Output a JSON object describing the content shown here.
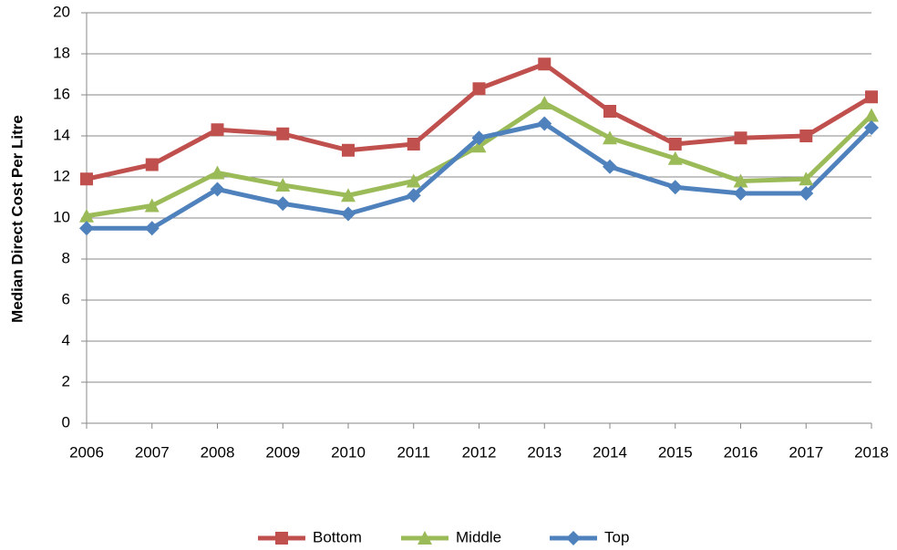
{
  "chart_data": {
    "type": "line",
    "y_label": "Median Direct Cost Per Litre",
    "categories": [
      "2006",
      "2007",
      "2008",
      "2009",
      "2010",
      "2011",
      "2012",
      "2013",
      "2014",
      "2015",
      "2016",
      "2017",
      "2018"
    ],
    "series": [
      {
        "name": "Bottom",
        "color": "#c0504d",
        "marker": "square",
        "values": [
          11.9,
          12.6,
          14.3,
          14.1,
          13.3,
          13.6,
          16.3,
          17.5,
          15.2,
          13.6,
          13.9,
          14.0,
          15.9
        ]
      },
      {
        "name": "Middle",
        "color": "#9bbb59",
        "marker": "triangle",
        "values": [
          10.1,
          10.6,
          12.2,
          11.6,
          11.1,
          11.8,
          13.5,
          15.6,
          13.9,
          12.9,
          11.8,
          11.9,
          15.0
        ]
      },
      {
        "name": "Top",
        "color": "#4f81bd",
        "marker": "diamond",
        "values": [
          9.5,
          9.5,
          11.4,
          10.7,
          10.2,
          11.1,
          13.9,
          14.6,
          12.5,
          11.5,
          11.2,
          11.2,
          14.4
        ]
      }
    ],
    "ylim": [
      0,
      20
    ],
    "yticks": [
      0,
      2,
      4,
      6,
      8,
      10,
      12,
      14,
      16,
      18,
      20
    ],
    "grid": true,
    "legend": "bottom"
  }
}
